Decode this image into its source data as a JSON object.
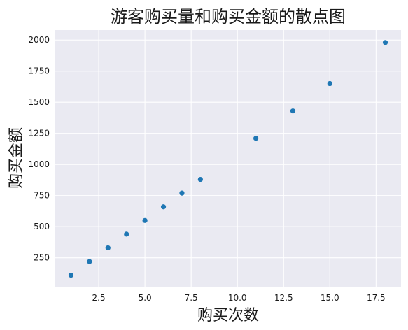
{
  "chart_data": {
    "type": "scatter",
    "title": "游客购买量和购买金额的散点图",
    "xlabel": "购买次数",
    "ylabel": "购买金额",
    "xlim": [
      0.15,
      18.85
    ],
    "ylim": [
      18,
      2080
    ],
    "xticks": [
      2.5,
      5.0,
      7.5,
      10.0,
      12.5,
      15.0,
      17.5
    ],
    "xtick_labels": [
      "2.5",
      "5.0",
      "7.5",
      "10.0",
      "12.5",
      "15.0",
      "17.5"
    ],
    "yticks": [
      250,
      500,
      750,
      1000,
      1250,
      1500,
      1750,
      2000
    ],
    "ytick_labels": [
      "250",
      "500",
      "750",
      "1000",
      "1250",
      "1500",
      "1750",
      "2000"
    ],
    "grid": true,
    "background": "#eaeaf2",
    "point_color": "#1f77b4",
    "points": [
      {
        "x": 1,
        "y": 110
      },
      {
        "x": 2,
        "y": 220
      },
      {
        "x": 3,
        "y": 330
      },
      {
        "x": 4,
        "y": 440
      },
      {
        "x": 5,
        "y": 550
      },
      {
        "x": 6,
        "y": 660
      },
      {
        "x": 7,
        "y": 770
      },
      {
        "x": 8,
        "y": 880
      },
      {
        "x": 11,
        "y": 1210
      },
      {
        "x": 13,
        "y": 1430
      },
      {
        "x": 15,
        "y": 1650
      },
      {
        "x": 18,
        "y": 1980
      }
    ]
  }
}
